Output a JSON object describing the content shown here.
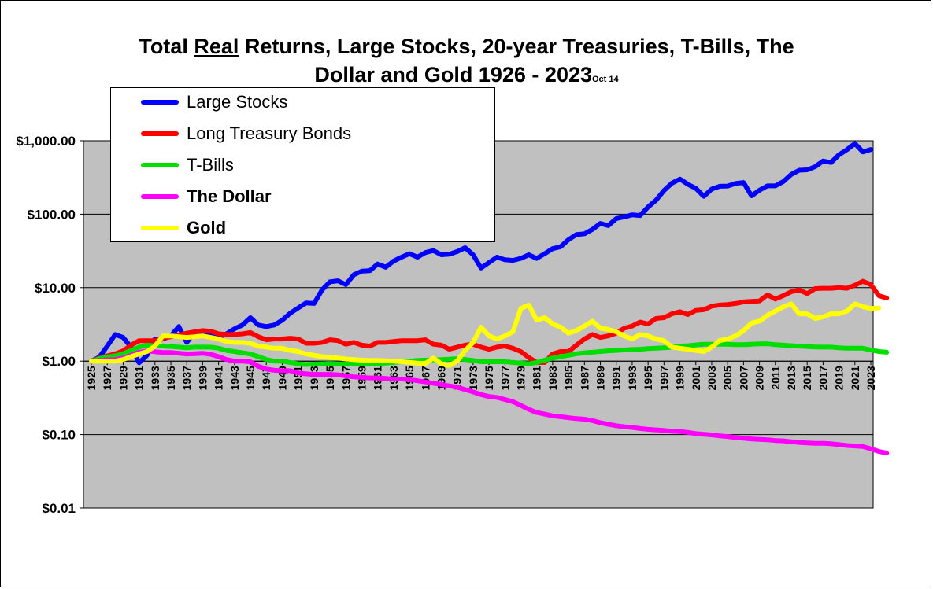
{
  "title": {
    "pre": "Total ",
    "underlined": "Real",
    "post": " Returns, Large Stocks, 20-year Treasuries, T-Bills, The",
    "line2": "Dollar and Gold 1926 - 2023",
    "suffix": "Oct 14"
  },
  "chart_data": {
    "type": "line",
    "yscale": "log",
    "ylim": [
      0.01,
      1000
    ],
    "grid": true,
    "legend_placement": "top-left",
    "y_tick_values": [
      0.01,
      0.1,
      1,
      10,
      100,
      1000
    ],
    "y_tick_labels": [
      "$0.01",
      "$0.10",
      "$1.00",
      "$10.00",
      "$100.00",
      "$1,000.00"
    ],
    "x_tick_labels": [
      "1925",
      "1927",
      "1929",
      "1931",
      "1933",
      "1935",
      "1937",
      "1939",
      "1941",
      "1943",
      "1945",
      "1947",
      "1949",
      "1951",
      "1953",
      "1955",
      "1957",
      "1959",
      "1961",
      "1963",
      "1965",
      "1967",
      "1969",
      "1971",
      "1973",
      "1975",
      "1977",
      "1979",
      "1981",
      "1983",
      "1985",
      "1987",
      "1989",
      "1991",
      "1993",
      "1995",
      "1997",
      "1999",
      "2001",
      "2003",
      "2005",
      "2007",
      "2009",
      "2011",
      "2013",
      "2015",
      "2017",
      "2019",
      "2021",
      "2023"
    ],
    "x_start": 1925,
    "series": [
      {
        "name": "Large Stocks",
        "color": "#0000FF",
        "values": [
          1.0,
          1.13,
          1.6,
          2.3,
          2.1,
          1.55,
          0.95,
          1.2,
          2.0,
          2.0,
          2.2,
          2.95,
          1.8,
          2.5,
          2.55,
          2.35,
          2.1,
          2.35,
          2.75,
          3.1,
          3.9,
          3.1,
          2.95,
          3.1,
          3.6,
          4.5,
          5.3,
          6.2,
          6.1,
          9.3,
          12.0,
          12.4,
          11.0,
          15.0,
          16.8,
          17.0,
          21.0,
          19.0,
          23.0,
          26.0,
          29.0,
          26.0,
          30.0,
          32.0,
          28.0,
          28.5,
          31.0,
          35.0,
          28.0,
          18.5,
          22.0,
          26.0,
          24.0,
          23.5,
          25.0,
          28.0,
          25.0,
          29.0,
          34.0,
          36.0,
          45.0,
          53.0,
          54.0,
          62.0,
          75.0,
          70.0,
          87.0,
          92.0,
          98.0,
          96.0,
          125.0,
          155.0,
          210.0,
          265.0,
          300.0,
          255.0,
          225.0,
          175.0,
          220.0,
          240.0,
          242.0,
          262.0,
          270.0,
          178.0,
          212.0,
          243.0,
          243.0,
          278.0,
          348.0,
          397.0,
          402.0,
          443.0,
          530.0,
          505.0,
          645.0,
          755.0,
          918.0,
          705.0,
          760.0
        ]
      },
      {
        "name": "Long Treasury Bonds",
        "color": "#FF0000",
        "values": [
          1.0,
          1.1,
          1.18,
          1.25,
          1.38,
          1.65,
          1.9,
          1.9,
          1.9,
          2.05,
          2.15,
          2.25,
          2.4,
          2.5,
          2.6,
          2.55,
          2.35,
          2.3,
          2.3,
          2.35,
          2.45,
          2.15,
          1.95,
          2.0,
          2.0,
          2.05,
          2.0,
          1.75,
          1.75,
          1.8,
          1.95,
          1.9,
          1.7,
          1.8,
          1.65,
          1.6,
          1.8,
          1.8,
          1.85,
          1.9,
          1.9,
          1.9,
          1.95,
          1.7,
          1.65,
          1.45,
          1.55,
          1.65,
          1.7,
          1.55,
          1.45,
          1.55,
          1.6,
          1.5,
          1.35,
          1.12,
          0.96,
          0.96,
          1.25,
          1.35,
          1.35,
          1.65,
          2.0,
          2.3,
          2.1,
          2.2,
          2.4,
          2.8,
          3.0,
          3.4,
          3.2,
          3.8,
          3.9,
          4.4,
          4.7,
          4.3,
          4.9,
          5.0,
          5.6,
          5.8,
          5.9,
          6.1,
          6.4,
          6.5,
          6.6,
          8.0,
          7.0,
          7.8,
          8.8,
          9.3,
          8.3,
          9.7,
          9.8,
          9.8,
          10.0,
          9.8,
          10.8,
          12.2,
          11.0,
          7.8,
          7.2
        ]
      },
      {
        "name": "T-Bills",
        "color": "#00DD00",
        "values": [
          1.0,
          1.08,
          1.14,
          1.18,
          1.26,
          1.4,
          1.55,
          1.65,
          1.62,
          1.6,
          1.58,
          1.55,
          1.52,
          1.55,
          1.55,
          1.55,
          1.5,
          1.4,
          1.35,
          1.3,
          1.25,
          1.15,
          1.05,
          1.0,
          1.0,
          0.96,
          0.92,
          0.9,
          0.91,
          0.92,
          0.93,
          0.92,
          0.91,
          0.91,
          0.91,
          0.92,
          0.93,
          0.94,
          0.96,
          0.98,
          1.0,
          1.02,
          1.03,
          1.04,
          1.05,
          1.06,
          1.08,
          1.05,
          1.02,
          0.98,
          0.98,
          0.98,
          0.98,
          0.96,
          0.94,
          0.92,
          0.96,
          1.03,
          1.1,
          1.15,
          1.2,
          1.26,
          1.3,
          1.32,
          1.35,
          1.38,
          1.4,
          1.42,
          1.44,
          1.45,
          1.48,
          1.5,
          1.52,
          1.55,
          1.6,
          1.62,
          1.66,
          1.7,
          1.7,
          1.7,
          1.7,
          1.68,
          1.68,
          1.7,
          1.72,
          1.72,
          1.68,
          1.65,
          1.62,
          1.6,
          1.58,
          1.56,
          1.55,
          1.55,
          1.52,
          1.5,
          1.5,
          1.5,
          1.42,
          1.35,
          1.32
        ]
      },
      {
        "name": "The Dollar",
        "color": "#FF00FF",
        "values": [
          1.0,
          1.02,
          1.04,
          1.05,
          1.1,
          1.2,
          1.32,
          1.38,
          1.34,
          1.31,
          1.31,
          1.28,
          1.25,
          1.26,
          1.28,
          1.24,
          1.15,
          1.05,
          1.0,
          1.0,
          0.98,
          0.85,
          0.78,
          0.75,
          0.74,
          0.74,
          0.69,
          0.67,
          0.66,
          0.66,
          0.66,
          0.65,
          0.63,
          0.61,
          0.6,
          0.59,
          0.59,
          0.58,
          0.57,
          0.57,
          0.56,
          0.54,
          0.52,
          0.5,
          0.48,
          0.46,
          0.44,
          0.41,
          0.38,
          0.35,
          0.33,
          0.32,
          0.3,
          0.28,
          0.25,
          0.22,
          0.2,
          0.19,
          0.18,
          0.175,
          0.17,
          0.165,
          0.162,
          0.155,
          0.145,
          0.138,
          0.132,
          0.128,
          0.125,
          0.121,
          0.118,
          0.116,
          0.114,
          0.111,
          0.11,
          0.107,
          0.103,
          0.101,
          0.099,
          0.096,
          0.094,
          0.091,
          0.089,
          0.087,
          0.086,
          0.085,
          0.083,
          0.082,
          0.08,
          0.078,
          0.077,
          0.076,
          0.076,
          0.075,
          0.073,
          0.071,
          0.07,
          0.069,
          0.064,
          0.059,
          0.056
        ]
      },
      {
        "name": "Gold",
        "color": "#FFFF00",
        "values": [
          1.0,
          1.0,
          1.0,
          1.0,
          1.05,
          1.15,
          1.25,
          1.35,
          1.6,
          2.2,
          2.2,
          2.15,
          2.1,
          2.15,
          2.2,
          2.1,
          2.0,
          1.85,
          1.8,
          1.8,
          1.75,
          1.6,
          1.55,
          1.5,
          1.5,
          1.4,
          1.35,
          1.25,
          1.2,
          1.15,
          1.12,
          1.1,
          1.07,
          1.05,
          1.03,
          1.02,
          1.02,
          1.01,
          1.0,
          0.98,
          0.96,
          0.94,
          0.93,
          1.1,
          0.92,
          0.87,
          1.0,
          1.4,
          1.8,
          2.9,
          2.2,
          2.0,
          2.2,
          2.5,
          5.2,
          5.8,
          3.6,
          3.9,
          3.2,
          2.9,
          2.4,
          2.6,
          3.0,
          3.5,
          2.8,
          2.7,
          2.5,
          2.2,
          2.0,
          2.3,
          2.2,
          2.0,
          1.9,
          1.55,
          1.5,
          1.45,
          1.4,
          1.35,
          1.55,
          1.9,
          2.0,
          2.2,
          2.6,
          3.3,
          3.5,
          4.2,
          4.8,
          5.5,
          6.0,
          4.4,
          4.4,
          3.8,
          4.0,
          4.4,
          4.4,
          4.8,
          6.0,
          5.5,
          5.2,
          5.3
        ]
      }
    ]
  }
}
